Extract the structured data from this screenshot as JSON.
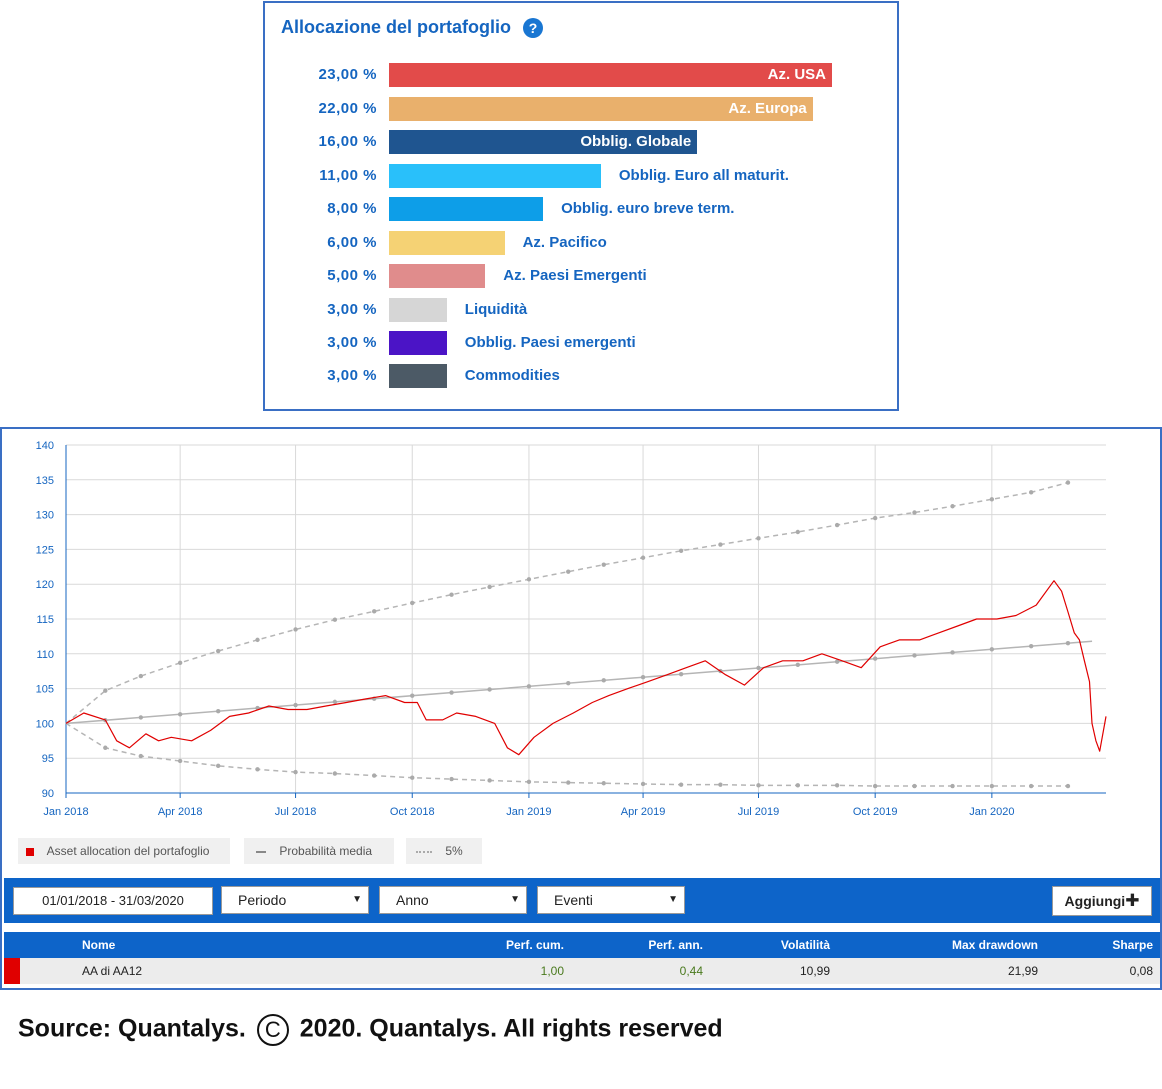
{
  "allocation": {
    "title": "Allocazione del portafoglio",
    "help_icon": "?",
    "items": [
      {
        "pct": "23,00 %",
        "label": "Az. USA",
        "value": 23,
        "color": "#e24b4a",
        "inside": true
      },
      {
        "pct": "22,00 %",
        "label": "Az. Europa",
        "value": 22,
        "color": "#e9b06c",
        "inside": true
      },
      {
        "pct": "16,00 %",
        "label": "Obblig. Globale",
        "value": 16,
        "color": "#1f5590",
        "inside": true
      },
      {
        "pct": "11,00 %",
        "label": "Obblig. Euro all maturit.",
        "value": 11,
        "color": "#29c0fa",
        "inside": false
      },
      {
        "pct": "8,00 %",
        "label": "Obblig. euro breve term.",
        "value": 8,
        "color": "#0d9ee8",
        "inside": false
      },
      {
        "pct": "6,00 %",
        "label": "Az. Pacifico",
        "value": 6,
        "color": "#f5d274",
        "inside": false
      },
      {
        "pct": "5,00 %",
        "label": "Az. Paesi Emergenti",
        "value": 5,
        "color": "#e08c8c",
        "inside": false
      },
      {
        "pct": "3,00 %",
        "label": "Liquidità",
        "value": 3,
        "color": "#d6d6d6",
        "inside": false
      },
      {
        "pct": "3,00 %",
        "label": "Obblig. Paesi emergenti",
        "value": 3,
        "color": "#4b14c6",
        "inside": false
      },
      {
        "pct": "3,00 %",
        "label": "Commodities",
        "value": 3,
        "color": "#4c5a66",
        "inside": false
      }
    ]
  },
  "chart_data": {
    "type": "line",
    "title": "",
    "ylim": [
      90,
      140
    ],
    "y_ticks": [
      90,
      95,
      100,
      105,
      110,
      115,
      120,
      125,
      130,
      135,
      140
    ],
    "x_ticks": [
      "Jan 2018",
      "Apr 2018",
      "Jul 2018",
      "Oct 2018",
      "Jan 2019",
      "Apr 2019",
      "Jul 2019",
      "Oct 2019",
      "Jan 2020"
    ],
    "grid": true,
    "colors": {
      "portfolio": "#e00000",
      "average": "#b5b5b5",
      "band": "#b5b5b5"
    },
    "series": [
      {
        "name": "Asset allocation del portafoglio",
        "x": [
          "2018-01-01",
          "2018-01-15",
          "2018-02-01",
          "2018-02-10",
          "2018-02-20",
          "2018-03-05",
          "2018-03-15",
          "2018-03-25",
          "2018-04-10",
          "2018-04-25",
          "2018-05-10",
          "2018-05-25",
          "2018-06-10",
          "2018-06-25",
          "2018-07-10",
          "2018-07-25",
          "2018-08-10",
          "2018-08-25",
          "2018-09-10",
          "2018-09-25",
          "2018-10-05",
          "2018-10-12",
          "2018-10-25",
          "2018-11-05",
          "2018-11-20",
          "2018-12-05",
          "2018-12-15",
          "2018-12-24",
          "2019-01-05",
          "2019-01-20",
          "2019-02-05",
          "2019-02-20",
          "2019-03-05",
          "2019-03-20",
          "2019-04-05",
          "2019-04-20",
          "2019-05-05",
          "2019-05-20",
          "2019-06-05",
          "2019-06-20",
          "2019-07-05",
          "2019-07-20",
          "2019-08-05",
          "2019-08-20",
          "2019-09-05",
          "2019-09-20",
          "2019-10-05",
          "2019-10-20",
          "2019-11-05",
          "2019-11-20",
          "2019-12-05",
          "2019-12-20",
          "2020-01-05",
          "2020-01-20",
          "2020-02-05",
          "2020-02-19",
          "2020-02-25",
          "2020-03-01",
          "2020-03-06",
          "2020-03-10",
          "2020-03-14",
          "2020-03-18",
          "2020-03-20",
          "2020-03-23",
          "2020-03-26",
          "2020-03-31"
        ],
        "values": [
          100,
          101.5,
          100.5,
          97.5,
          96.5,
          98.5,
          97.5,
          98,
          97.5,
          99,
          101,
          101.5,
          102.5,
          102,
          102,
          102.5,
          103,
          103.5,
          104,
          103,
          103,
          100.5,
          100.5,
          101.5,
          101,
          100,
          96.5,
          95.5,
          98,
          100,
          101.5,
          103,
          104,
          105,
          106,
          107,
          108,
          109,
          107,
          105.5,
          108,
          109,
          109,
          110,
          109,
          108,
          111,
          112,
          112,
          113,
          114,
          115,
          115,
          115.5,
          117,
          120.5,
          119,
          116,
          113,
          112,
          109,
          106,
          100,
          97.5,
          96,
          101
        ]
      },
      {
        "name": "Probabilità media",
        "x": [
          "2018-01-01",
          "2020-03-20"
        ],
        "values": [
          100,
          111.8
        ]
      },
      {
        "name": "5%",
        "x": [
          "2018-01-01",
          "2018-02-01",
          "2018-03-01",
          "2018-04-01",
          "2018-05-01",
          "2018-06-01",
          "2018-07-01",
          "2018-08-01",
          "2018-09-01",
          "2018-10-01",
          "2018-11-01",
          "2018-12-01",
          "2019-01-01",
          "2019-02-01",
          "2019-03-01",
          "2019-04-01",
          "2019-05-01",
          "2019-06-01",
          "2019-07-01",
          "2019-08-01",
          "2019-09-01",
          "2019-10-01",
          "2019-11-01",
          "2019-12-01",
          "2020-01-01",
          "2020-02-01",
          "2020-03-01"
        ],
        "upper": [
          100,
          104.7,
          106.8,
          108.7,
          110.4,
          112,
          113.5,
          114.9,
          116.1,
          117.3,
          118.5,
          119.6,
          120.7,
          121.8,
          122.8,
          123.8,
          124.8,
          125.7,
          126.6,
          127.5,
          128.5,
          129.5,
          130.3,
          131.2,
          132.2,
          133.2,
          134.6
        ],
        "lower": [
          100,
          96.5,
          95.3,
          94.6,
          93.9,
          93.4,
          93,
          92.8,
          92.5,
          92.2,
          92,
          91.8,
          91.6,
          91.5,
          91.4,
          91.3,
          91.2,
          91.2,
          91.1,
          91.1,
          91.1,
          91,
          91,
          91,
          91,
          91,
          91
        ]
      }
    ]
  },
  "legend": {
    "portfolio": "Asset allocation del portafoglio",
    "average": "Probabilità media",
    "band": "5%"
  },
  "toolbar": {
    "date_range": "01/01/2018 - 31/03/2020",
    "periodo": "Periodo",
    "anno": "Anno",
    "eventi": "Eventi",
    "add_label": "Aggiungi"
  },
  "table": {
    "headers": {
      "name": "Nome",
      "perf_cum": "Perf. cum.",
      "perf_ann": "Perf. ann.",
      "volatility": "Volatilità",
      "max_dd": "Max drawdown",
      "sharpe": "Sharpe"
    },
    "row": {
      "name": "AA di AA12",
      "perf_cum": "1,00",
      "perf_ann": "0,44",
      "volatility": "10,99",
      "max_dd": "21,99",
      "sharpe": "0,08"
    }
  },
  "source": {
    "prefix": "Source: Quantalys.",
    "copyright_symbol": "C",
    "suffix": "2020. Quantalys. All rights reserved"
  }
}
